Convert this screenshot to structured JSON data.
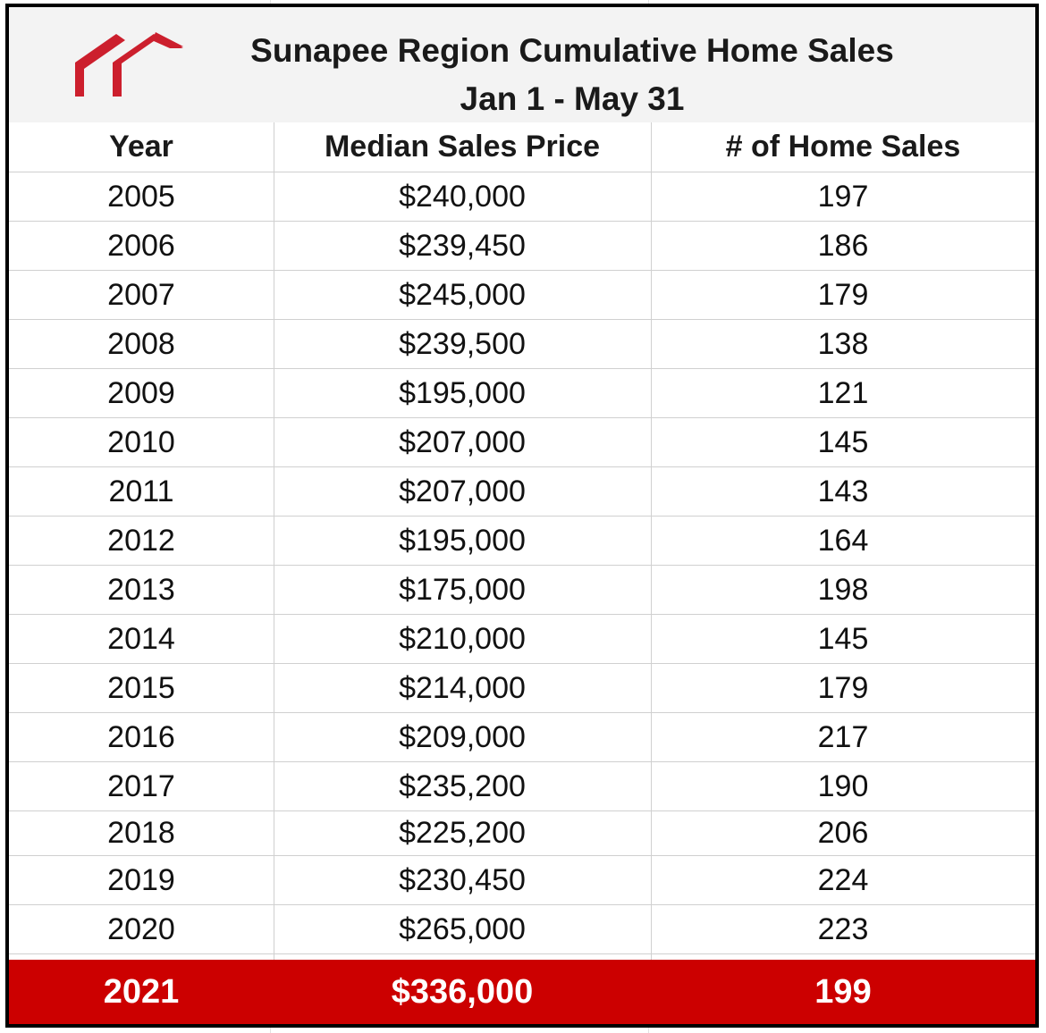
{
  "title": {
    "line1": "Sunapee Region Cumulative Home Sales",
    "line2": "Jan 1 - May 31"
  },
  "logo": {
    "icon": "house-roof-logo",
    "color": "#cc1f2d"
  },
  "headers": {
    "year": "Year",
    "price": "Median Sales Price",
    "sales": "# of Home Sales"
  },
  "rows": [
    {
      "year": "2005",
      "price": "$240,000",
      "sales": "197"
    },
    {
      "year": "2006",
      "price": "$239,450",
      "sales": "186"
    },
    {
      "year": "2007",
      "price": "$245,000",
      "sales": "179"
    },
    {
      "year": "2008",
      "price": "$239,500",
      "sales": "138"
    },
    {
      "year": "2009",
      "price": "$195,000",
      "sales": "121"
    },
    {
      "year": "2010",
      "price": "$207,000",
      "sales": "145"
    },
    {
      "year": "2011",
      "price": "$207,000",
      "sales": "143"
    },
    {
      "year": "2012",
      "price": "$195,000",
      "sales": "164"
    },
    {
      "year": "2013",
      "price": "$175,000",
      "sales": "198"
    },
    {
      "year": "2014",
      "price": "$210,000",
      "sales": "145"
    },
    {
      "year": "2015",
      "price": "$214,000",
      "sales": "179"
    },
    {
      "year": "2016",
      "price": "$209,000",
      "sales": "217"
    },
    {
      "year": "2017",
      "price": "$235,200",
      "sales": "190"
    },
    {
      "year": "2018",
      "price": "$225,200",
      "sales": "206"
    },
    {
      "year": "2019",
      "price": "$230,450",
      "sales": "224"
    },
    {
      "year": "2020",
      "price": "$265,000",
      "sales": "223"
    }
  ],
  "highlight": {
    "year": "2021",
    "price": "$336,000",
    "sales": "199"
  },
  "colors": {
    "highlight_bg": "#cc0000",
    "header_bg": "#f3f3f3"
  },
  "chart_data": {
    "type": "table",
    "title": "Sunapee Region Cumulative Home Sales",
    "subtitle": "Jan 1 - May 31",
    "columns": [
      "Year",
      "Median Sales Price",
      "# of Home Sales"
    ],
    "rows": [
      [
        2005,
        240000,
        197
      ],
      [
        2006,
        239450,
        186
      ],
      [
        2007,
        245000,
        179
      ],
      [
        2008,
        239500,
        138
      ],
      [
        2009,
        195000,
        121
      ],
      [
        2010,
        207000,
        145
      ],
      [
        2011,
        207000,
        143
      ],
      [
        2012,
        195000,
        164
      ],
      [
        2013,
        175000,
        198
      ],
      [
        2014,
        210000,
        145
      ],
      [
        2015,
        214000,
        179
      ],
      [
        2016,
        209000,
        217
      ],
      [
        2017,
        235200,
        190
      ],
      [
        2018,
        225200,
        206
      ],
      [
        2019,
        230450,
        224
      ],
      [
        2020,
        265000,
        223
      ],
      [
        2021,
        336000,
        199
      ]
    ]
  }
}
